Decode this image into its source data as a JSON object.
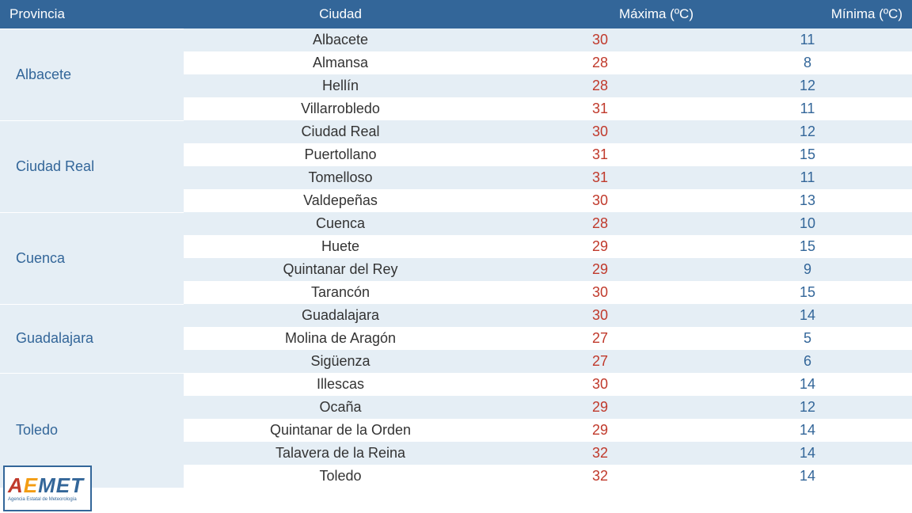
{
  "type": "table",
  "colors": {
    "header_bg": "#336699",
    "header_text": "#ffffff",
    "stripe_bg": "#e5eef5",
    "row_bg": "#ffffff",
    "province_text": "#336699",
    "city_text": "#333333",
    "max_text": "#c0392b",
    "min_text": "#336699"
  },
  "columns": {
    "provincia": "Provincia",
    "ciudad": "Ciudad",
    "maxima": "Máxima (ºC)",
    "minima": "Mínima (ºC)"
  },
  "provinces": [
    {
      "name": "Albacete",
      "cities": [
        {
          "name": "Albacete",
          "max": 30,
          "min": 11
        },
        {
          "name": "Almansa",
          "max": 28,
          "min": 8
        },
        {
          "name": "Hellín",
          "max": 28,
          "min": 12
        },
        {
          "name": "Villarrobledo",
          "max": 31,
          "min": 11
        }
      ]
    },
    {
      "name": "Ciudad Real",
      "cities": [
        {
          "name": "Ciudad Real",
          "max": 30,
          "min": 12
        },
        {
          "name": "Puertollano",
          "max": 31,
          "min": 15
        },
        {
          "name": "Tomelloso",
          "max": 31,
          "min": 11
        },
        {
          "name": "Valdepeñas",
          "max": 30,
          "min": 13
        }
      ]
    },
    {
      "name": "Cuenca",
      "cities": [
        {
          "name": "Cuenca",
          "max": 28,
          "min": 10
        },
        {
          "name": "Huete",
          "max": 29,
          "min": 15
        },
        {
          "name": "Quintanar del Rey",
          "max": 29,
          "min": 9
        },
        {
          "name": "Tarancón",
          "max": 30,
          "min": 15
        }
      ]
    },
    {
      "name": "Guadalajara",
      "cities": [
        {
          "name": "Guadalajara",
          "max": 30,
          "min": 14
        },
        {
          "name": "Molina de Aragón",
          "max": 27,
          "min": 5
        },
        {
          "name": "Sigüenza",
          "max": 27,
          "min": 6
        }
      ]
    },
    {
      "name": "Toledo",
      "cities": [
        {
          "name": "Illescas",
          "max": 30,
          "min": 14
        },
        {
          "name": "Ocaña",
          "max": 29,
          "min": 12
        },
        {
          "name": "Quintanar de la Orden",
          "max": 29,
          "min": 14
        },
        {
          "name": "Talavera de la Reina",
          "max": 32,
          "min": 14
        },
        {
          "name": "Toledo",
          "max": 32,
          "min": 14
        }
      ]
    }
  ],
  "logo": {
    "text_a": "A",
    "text_e": "E",
    "text_rest": "MET",
    "subtitle": "Agencia Estatal de Meteorología"
  }
}
